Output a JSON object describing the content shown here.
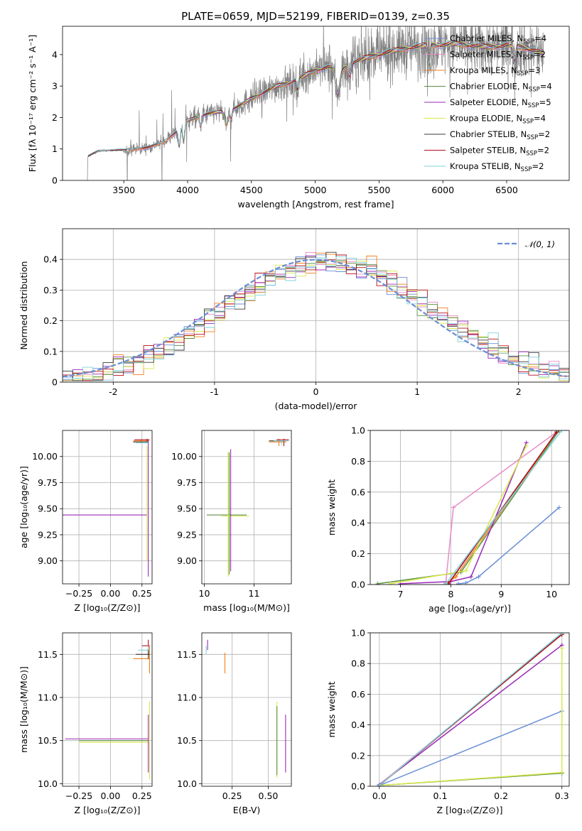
{
  "figure": {
    "title": "PLATE=0659, MJD=52199, FIBERID=0139, z=0.35"
  },
  "colors": {
    "chabrier_miles": "#6a8fd6",
    "salpeter_miles": "#e88ac8",
    "kroupa_miles": "#f07f1e",
    "chabrier_elodie": "#5a8f40",
    "salpeter_elodie": "#9b2ab8",
    "kroupa_elodie": "#d9e84a",
    "chabrier_stelib": "#3a3a3a",
    "salpeter_stelib": "#b30f1a",
    "kroupa_stelib": "#7fd3dc",
    "data": "#808080"
  },
  "chart_data": [
    {
      "id": "spectrum",
      "type": "line",
      "title": "PLATE=0659, MJD=52199, FIBERID=0139, z=0.35",
      "xlabel": "wavelength [Angstrom, rest frame]",
      "ylabel": "Flux [fλ 10⁻¹⁷ erg cm⁻² s⁻¹ A⁻¹]",
      "xlim": [
        3020,
        6990
      ],
      "ylim": [
        0,
        4.9
      ],
      "xticks": [
        3500,
        4000,
        4500,
        5000,
        5500,
        6000,
        6500
      ],
      "yticks": [
        0,
        1,
        2,
        3,
        4
      ],
      "grid": false,
      "legend_position": "top-right",
      "legend": [
        {
          "label": "Chabrier MILES, N",
          "sub": "SSP",
          "suffix": "=4",
          "color_key": "chabrier_miles"
        },
        {
          "label": "Salpeter MILES, N",
          "sub": "SSP",
          "suffix": "=2",
          "color_key": "salpeter_miles"
        },
        {
          "label": "Kroupa MILES, N",
          "sub": "SSP",
          "suffix": "=3",
          "color_key": "kroupa_miles"
        },
        {
          "label": "Chabrier ELODIE, N",
          "sub": "SSP",
          "suffix": "=4",
          "color_key": "chabrier_elodie"
        },
        {
          "label": "Salpeter ELODIE, N",
          "sub": "SSP",
          "suffix": "=5",
          "color_key": "salpeter_elodie"
        },
        {
          "label": "Kroupa ELODIE, N",
          "sub": "SSP",
          "suffix": "=4",
          "color_key": "kroupa_elodie"
        },
        {
          "label": "Chabrier STELIB, N",
          "sub": "SSP",
          "suffix": "=2",
          "color_key": "chabrier_stelib"
        },
        {
          "label": "Salpeter STELIB, N",
          "sub": "SSP",
          "suffix": "=2",
          "color_key": "salpeter_stelib"
        },
        {
          "label": "Kroupa STELIB, N",
          "sub": "SSP",
          "suffix": "=2",
          "color_key": "kroupa_stelib"
        }
      ],
      "continuum": [
        [
          3215,
          0
        ],
        [
          3218,
          0.75
        ],
        [
          3300,
          0.92
        ],
        [
          3400,
          0.95
        ],
        [
          3500,
          0.95
        ],
        [
          3700,
          1.05
        ],
        [
          3800,
          1.2
        ],
        [
          3900,
          1.5
        ],
        [
          4000,
          1.9
        ],
        [
          4100,
          2.05
        ],
        [
          4200,
          2.15
        ],
        [
          4300,
          2.2
        ],
        [
          4400,
          2.35
        ],
        [
          4500,
          2.6
        ],
        [
          4600,
          2.8
        ],
        [
          4700,
          3.0
        ],
        [
          4800,
          3.1
        ],
        [
          4900,
          3.3
        ],
        [
          5000,
          3.5
        ],
        [
          5100,
          3.6
        ],
        [
          5200,
          3.5
        ],
        [
          5300,
          3.75
        ],
        [
          5400,
          3.9
        ],
        [
          5500,
          4.0
        ],
        [
          5600,
          4.1
        ],
        [
          5700,
          4.2
        ],
        [
          5800,
          4.25
        ],
        [
          5900,
          4.3
        ],
        [
          6000,
          4.3
        ],
        [
          6100,
          4.35
        ],
        [
          6200,
          4.3
        ],
        [
          6300,
          4.25
        ],
        [
          6400,
          4.25
        ],
        [
          6500,
          4.3
        ],
        [
          6600,
          4.25
        ],
        [
          6700,
          4.15
        ],
        [
          6790,
          4.05
        ]
      ]
    },
    {
      "id": "residuals",
      "type": "line",
      "xlabel": "(data-model)/error",
      "ylabel": "Normed distribution",
      "xlim": [
        -2.5,
        2.5
      ],
      "ylim": [
        0,
        0.5
      ],
      "xticks": [
        -2,
        -1,
        0,
        1,
        2
      ],
      "yticks": [
        0.0,
        0.1,
        0.2,
        0.3,
        0.4
      ],
      "grid": true,
      "legend_position": "top-right",
      "legend": [
        {
          "label": "𝒩(0, 1)",
          "color_key": "chabrier_miles",
          "dashed": true
        }
      ],
      "bin_width": 0.1,
      "mean_shift": 0.12,
      "sigma": 1.02
    },
    {
      "id": "age_vs_Z",
      "type": "scatter",
      "xlabel": "Z [log₁₀(Z/Z⊙)]",
      "ylabel": "age  [log₁₀(age/yr)]",
      "xlim": [
        -0.38,
        0.33
      ],
      "ylim": [
        8.78,
        10.25
      ],
      "xticks": [
        -0.25,
        0.0,
        0.25
      ],
      "xtick_labels": [
        "−0.25",
        "0.00",
        "0.25"
      ],
      "yticks": [
        9.0,
        9.25,
        9.5,
        9.75,
        10.0
      ],
      "ytick_labels": [
        "9.00",
        "9.25",
        "9.50",
        "9.75",
        "10.00"
      ],
      "grid": true,
      "points": [
        {
          "color_key": "salpeter_elodie",
          "x": 0.0,
          "y": 9.44,
          "xl": -0.38,
          "xh": 0.29,
          "yl": 9.44,
          "yh": 9.44
        },
        {
          "color_key": "kroupa_miles",
          "x": 0.24,
          "y": 10.15,
          "xl": 0.18,
          "xh": 0.3,
          "yl": 10.14,
          "yh": 10.16
        },
        {
          "color_key": "salpeter_elodie",
          "x": 0.3,
          "y": 9.7,
          "xl": 0.3,
          "xh": 0.3,
          "yl": 8.85,
          "yh": 10.16
        },
        {
          "color_key": "kroupa_elodie",
          "x": 0.29,
          "y": 10.0,
          "xl": 0.29,
          "xh": 0.29,
          "yl": 9.0,
          "yh": 10.1
        },
        {
          "color_key": "chabrier_stelib",
          "x": 0.29,
          "y": 10.14,
          "xl": 0.18,
          "xh": 0.3,
          "yl": 10.13,
          "yh": 10.15
        },
        {
          "color_key": "salpeter_stelib",
          "x": 0.29,
          "y": 10.16,
          "xl": 0.19,
          "xh": 0.31,
          "yl": 10.15,
          "yh": 10.17
        },
        {
          "color_key": "kroupa_stelib",
          "x": 0.29,
          "y": 10.13,
          "xl": 0.2,
          "xh": 0.3,
          "yl": 10.12,
          "yh": 10.14
        }
      ]
    },
    {
      "id": "age_vs_mass",
      "type": "scatter",
      "xlabel": "mass [log₁₀(M/M⊙)]",
      "ylabel": "",
      "xlim": [
        9.95,
        11.75
      ],
      "ylim": [
        8.78,
        10.25
      ],
      "xticks": [
        10,
        11
      ],
      "xtick_labels": [
        "10",
        "11"
      ],
      "yticks": [
        9.0,
        9.25,
        9.5,
        9.75,
        10.0
      ],
      "ytick_labels": [
        "9.00",
        "9.25",
        "9.50",
        "9.75",
        "10.00"
      ],
      "grid": true,
      "points": [
        {
          "color_key": "chabrier_elodie",
          "x": 10.5,
          "y": 9.44,
          "xl": 10.05,
          "xh": 10.85,
          "yl": 8.87,
          "yh": 10.04
        },
        {
          "color_key": "kroupa_elodie",
          "x": 10.48,
          "y": 9.43,
          "xl": 10.35,
          "xh": 10.9,
          "yl": 8.85,
          "yh": 10.05
        },
        {
          "color_key": "salpeter_elodie",
          "x": 10.53,
          "y": 9.45,
          "xl": 10.53,
          "xh": 10.53,
          "yl": 8.9,
          "yh": 10.07
        },
        {
          "color_key": "chabrier_stelib",
          "x": 11.5,
          "y": 10.15,
          "xl": 11.3,
          "xh": 11.6,
          "yl": 10.14,
          "yh": 10.16
        },
        {
          "color_key": "kroupa_miles",
          "x": 11.5,
          "y": 10.14,
          "xl": 11.3,
          "xh": 11.65,
          "yl": 10.1,
          "yh": 10.17
        },
        {
          "color_key": "salpeter_stelib",
          "x": 11.6,
          "y": 10.16,
          "xl": 11.45,
          "xh": 11.7,
          "yl": 10.1,
          "yh": 10.17
        },
        {
          "color_key": "kroupa_stelib",
          "x": 11.55,
          "y": 10.15,
          "xl": 11.4,
          "xh": 11.7,
          "yl": 10.11,
          "yh": 10.16
        }
      ]
    },
    {
      "id": "weight_vs_age",
      "type": "line",
      "xlabel": "age  [log₁₀(age/yr)]",
      "ylabel": "mass weight",
      "xlim": [
        6.4,
        10.35
      ],
      "ylim": [
        0,
        1.0
      ],
      "xticks": [
        7,
        8,
        9,
        10
      ],
      "yticks": [
        0.0,
        0.2,
        0.4,
        0.6,
        0.8,
        1.0
      ],
      "ytick_labels": [
        "0.0",
        "0.2",
        "0.4",
        "0.6",
        "0.8",
        "1.0"
      ],
      "grid": true,
      "series": [
        {
          "color_key": "chabrier_miles",
          "x": [
            8.15,
            8.3,
            8.55,
            10.15
          ],
          "y": [
            0.005,
            0.01,
            0.05,
            0.5
          ]
        },
        {
          "color_key": "salpeter_miles",
          "x": [
            7.9,
            8.05,
            10.1
          ],
          "y": [
            0.01,
            0.5,
            0.99
          ]
        },
        {
          "color_key": "kroupa_miles",
          "x": [
            7.9,
            8.1,
            10.1
          ],
          "y": [
            0.005,
            0.05,
            0.99
          ]
        },
        {
          "color_key": "chabrier_elodie",
          "x": [
            6.55,
            8.2,
            10.15
          ],
          "y": [
            0.005,
            0.08,
            1.0
          ]
        },
        {
          "color_key": "salpeter_elodie",
          "x": [
            7.0,
            8.0,
            8.4,
            9.5
          ],
          "y": [
            0.005,
            0.02,
            0.05,
            0.92
          ]
        },
        {
          "color_key": "kroupa_elodie",
          "x": [
            6.8,
            8.3,
            9.5
          ],
          "y": [
            0.005,
            0.09,
            0.9
          ]
        },
        {
          "color_key": "chabrier_stelib",
          "x": [
            7.95,
            10.1
          ],
          "y": [
            0.005,
            0.99
          ]
        },
        {
          "color_key": "salpeter_stelib",
          "x": [
            7.95,
            10.1
          ],
          "y": [
            0.005,
            0.99
          ]
        },
        {
          "color_key": "kroupa_stelib",
          "x": [
            7.9,
            10.2
          ],
          "y": [
            0.005,
            1.0
          ]
        }
      ]
    },
    {
      "id": "mass_vs_Z",
      "type": "scatter",
      "xlabel": "Z [log₁₀(Z/Z⊙)]",
      "ylabel": "mass [log₁₀(M/M⊙)]",
      "xlim": [
        -0.38,
        0.33
      ],
      "ylim": [
        9.97,
        11.75
      ],
      "xticks": [
        -0.25,
        0.0,
        0.25
      ],
      "xtick_labels": [
        "−0.25",
        "0.00",
        "0.25"
      ],
      "yticks": [
        10.0,
        10.5,
        11.0,
        11.5
      ],
      "ytick_labels": [
        "10.0",
        "10.5",
        "11.0",
        "11.5"
      ],
      "grid": true,
      "points": [
        {
          "color_key": "salpeter_elodie",
          "x": 0.0,
          "y": 10.52,
          "xl": -0.36,
          "xh": 0.3,
          "yl": 10.52,
          "yh": 10.52
        },
        {
          "color_key": "kroupa_elodie",
          "x": 0.05,
          "y": 10.48,
          "xl": -0.25,
          "xh": 0.3,
          "yl": 10.48,
          "yh": 10.48
        },
        {
          "color_key": "chabrier_elodie",
          "x": 0.05,
          "y": 10.5,
          "xl": -0.25,
          "xh": 0.3,
          "yl": 10.5,
          "yh": 10.5
        },
        {
          "color_key": "salpeter_elodie",
          "x": 0.3,
          "y": 10.5,
          "xl": 0.3,
          "xh": 0.3,
          "yl": 10.13,
          "yh": 10.8
        },
        {
          "color_key": "kroupa_elodie",
          "x": 0.31,
          "y": 10.7,
          "xl": 0.31,
          "xh": 0.31,
          "yl": 10.05,
          "yh": 10.95
        },
        {
          "color_key": "kroupa_miles",
          "x": 0.31,
          "y": 11.45,
          "xl": 0.18,
          "xh": 0.31,
          "yl": 11.28,
          "yh": 11.6
        },
        {
          "color_key": "salpeter_stelib",
          "x": 0.3,
          "y": 11.6,
          "xl": 0.25,
          "xh": 0.31,
          "yl": 11.5,
          "yh": 11.67
        },
        {
          "color_key": "kroupa_stelib",
          "x": 0.3,
          "y": 11.55,
          "xl": 0.22,
          "xh": 0.31,
          "yl": 11.48,
          "yh": 11.6
        },
        {
          "color_key": "chabrier_stelib",
          "x": 0.3,
          "y": 11.5,
          "xl": 0.2,
          "xh": 0.31,
          "yl": 11.45,
          "yh": 11.55
        }
      ]
    },
    {
      "id": "mass_vs_ebv",
      "type": "scatter",
      "xlabel": "E(B-V)",
      "ylabel": "",
      "xlim": [
        0.04,
        0.66
      ],
      "ylim": [
        9.97,
        11.75
      ],
      "xticks": [
        0.25,
        0.5
      ],
      "xtick_labels": [
        "0.25",
        "0.50"
      ],
      "yticks": [
        10.0,
        10.5,
        11.0,
        11.5
      ],
      "ytick_labels": [
        "10.0",
        "10.5",
        "11.0",
        "11.5"
      ],
      "grid": true,
      "points": [
        {
          "color_key": "kroupa_miles",
          "x": 0.2,
          "y": 11.4,
          "xl": 0.2,
          "xh": 0.2,
          "yl": 11.28,
          "yh": 11.52
        },
        {
          "color_key": "salpeter_elodie",
          "x": 0.08,
          "y": 11.6,
          "xl": 0.08,
          "xh": 0.08,
          "yl": 11.55,
          "yh": 11.67
        },
        {
          "color_key": "kroupa_stelib",
          "x": 0.07,
          "y": 11.55,
          "xl": 0.07,
          "xh": 0.07,
          "yl": 11.5,
          "yh": 11.6
        },
        {
          "color_key": "kroupa_elodie",
          "x": 0.56,
          "y": 10.5,
          "xl": 0.56,
          "xh": 0.56,
          "yl": 10.07,
          "yh": 10.95
        },
        {
          "color_key": "chabrier_elodie",
          "x": 0.56,
          "y": 10.45,
          "xl": 0.56,
          "xh": 0.56,
          "yl": 10.1,
          "yh": 10.9
        },
        {
          "color_key": "salpeter_elodie",
          "x": 0.62,
          "y": 10.45,
          "xl": 0.62,
          "xh": 0.62,
          "yl": 10.13,
          "yh": 10.8
        }
      ]
    },
    {
      "id": "weight_vs_Z",
      "type": "line",
      "xlabel": "Z [log₁₀(Z/Z⊙)]",
      "ylabel": "mass weight",
      "xlim": [
        -0.015,
        0.312
      ],
      "ylim": [
        0,
        1.0
      ],
      "xticks": [
        0.0,
        0.1,
        0.2,
        0.3
      ],
      "xtick_labels": [
        "0.0",
        "0.1",
        "0.2",
        "0.3"
      ],
      "yticks": [
        0.0,
        0.2,
        0.4,
        0.6,
        0.8,
        1.0
      ],
      "ytick_labels": [
        "0.0",
        "0.2",
        "0.4",
        "0.6",
        "0.8",
        "1.0"
      ],
      "grid": true,
      "series": [
        {
          "color_key": "chabrier_miles",
          "x": [
            0.0,
            0.3
          ],
          "y": [
            0.005,
            0.49
          ]
        },
        {
          "color_key": "salpeter_miles",
          "x": [
            0.0,
            0.3
          ],
          "y": [
            0.01,
            0.99
          ]
        },
        {
          "color_key": "kroupa_miles",
          "x": [
            0.0,
            0.3
          ],
          "y": [
            0.005,
            0.99
          ]
        },
        {
          "color_key": "chabrier_elodie",
          "x": [
            0.0,
            0.3
          ],
          "y": [
            0.005,
            0.085
          ]
        },
        {
          "color_key": "salpeter_elodie",
          "x": [
            0.0,
            0.3
          ],
          "y": [
            0.01,
            0.92
          ]
        },
        {
          "color_key": "kroupa_elodie",
          "x": [
            0.0,
            0.3,
            0.3
          ],
          "y": [
            0.005,
            0.09,
            0.9
          ]
        },
        {
          "color_key": "chabrier_stelib",
          "x": [
            0.0,
            0.3
          ],
          "y": [
            0.005,
            0.99
          ]
        },
        {
          "color_key": "salpeter_stelib",
          "x": [
            0.0,
            0.3
          ],
          "y": [
            0.005,
            0.99
          ]
        },
        {
          "color_key": "kroupa_stelib",
          "x": [
            0.0,
            0.3
          ],
          "y": [
            0.005,
            1.0
          ]
        }
      ]
    }
  ]
}
